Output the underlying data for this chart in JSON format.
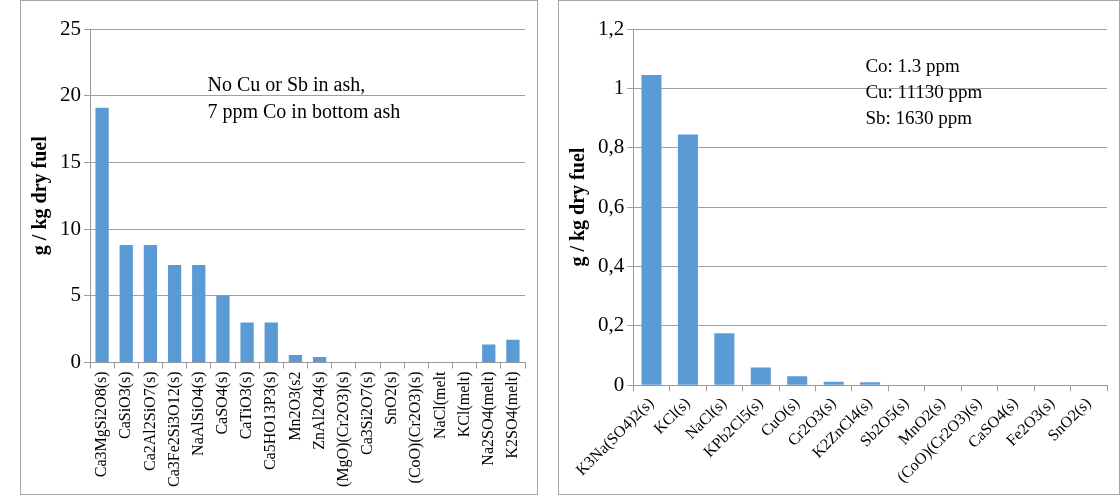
{
  "chart_data": [
    {
      "type": "bar",
      "ylabel": "g / kg dry fuel",
      "categories": [
        "Ca3MgSi2O8(s)",
        "CaSiO3(s)",
        "Ca2Al2SiO7(s)",
        "Ca3Fe2Si3O12(s)",
        "NaAlSiO4(s)",
        "CaSO4(s)",
        "CaTiO3(s)",
        "Ca5HO13P3(s)",
        "Mn2O3(s2",
        "ZnAl2O4(s)",
        "(MgO)(Cr2O3)(s)",
        "Ca3Si2O7(s)",
        "SnO2(s)",
        "(CoO)(Cr2O3)(s)",
        "NaCl(melt",
        "KCl(melt)",
        "Na2SO4(melt)",
        "K2SO4(melt)"
      ],
      "values": [
        19.1,
        8.8,
        8.8,
        7.3,
        7.3,
        5.0,
        3.0,
        3.0,
        0.55,
        0.4,
        0,
        0,
        0,
        0,
        0,
        0,
        1.35,
        1.7
      ],
      "color": "#5b9bd5",
      "ylim": [
        0,
        25
      ],
      "yticks": [
        0,
        5,
        10,
        15,
        20,
        25
      ],
      "grid": "y",
      "annotations": [
        "No Cu or Sb in ash,",
        "7 ppm Co in bottom ash"
      ]
    },
    {
      "type": "bar",
      "ylabel": "g / kg dry fuel",
      "categories": [
        "K3Na(SO4)2(s)",
        "KCl(s)",
        "NaCl(s)",
        "KPb2Cl5(s)",
        "CuO(s)",
        "Cr2O3(s)",
        "K2ZnCl4(s)",
        "Sb2O5(s)",
        "MnO2(s)",
        "(CoO)(Cr2O3)(s)",
        "CaSO4(s)",
        "Fe2O3(s)",
        "SnO2(s)"
      ],
      "values": [
        1.045,
        0.845,
        0.175,
        0.06,
        0.03,
        0.012,
        0.01,
        0,
        0,
        0,
        0,
        0,
        0
      ],
      "color": "#5b9bd5",
      "ylim": [
        0,
        1.2
      ],
      "yticks": [
        0,
        {
          "value": 0.2,
          "label": "0,2"
        },
        {
          "value": 0.4,
          "label": "0,4"
        },
        {
          "value": 0.6,
          "label": "0,6"
        },
        {
          "value": 0.8,
          "label": "0,8"
        },
        1,
        {
          "value": 1.2,
          "label": "1,2"
        }
      ],
      "grid": "y",
      "annotations": [
        "Co: 1.3 ppm",
        "Cu: 11130 ppm",
        "Sb: 1630 ppm"
      ]
    }
  ]
}
